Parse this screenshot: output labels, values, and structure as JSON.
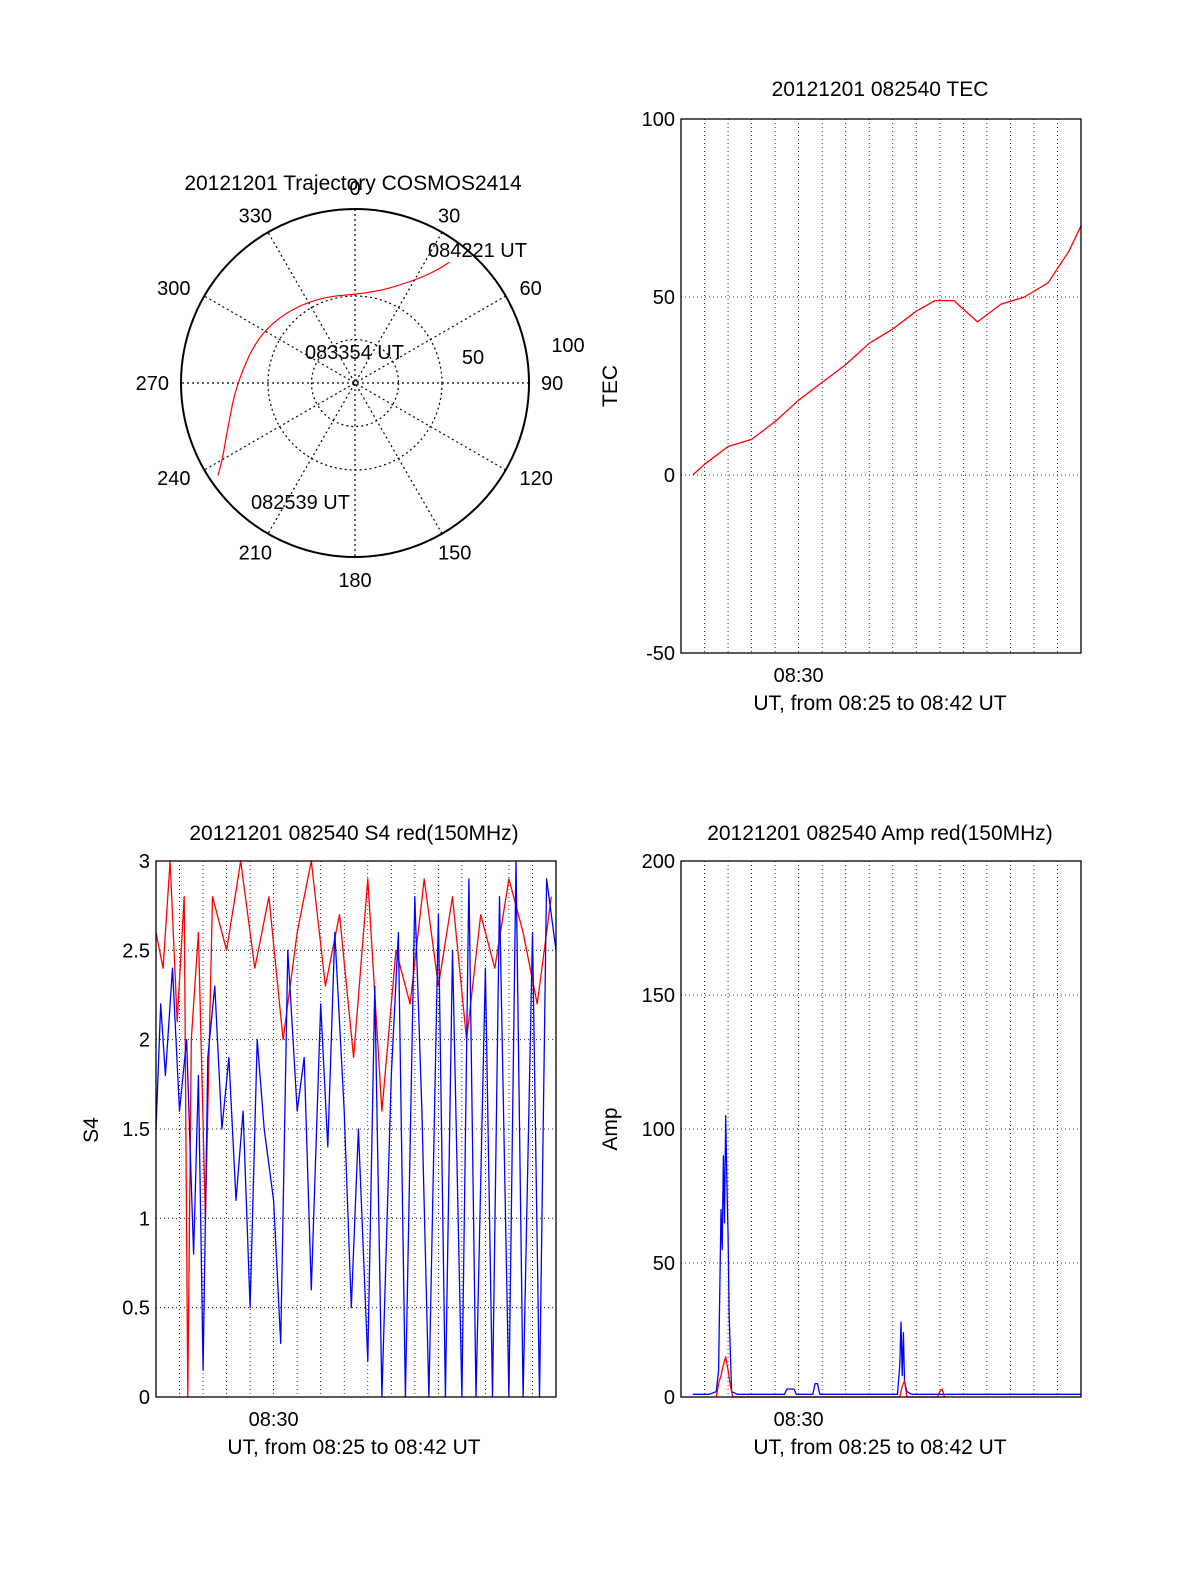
{
  "chart_data": [
    {
      "type": "polar",
      "title": "20121201 Trajectory COSMOS2414",
      "azimuth_labels": [
        "0",
        "30",
        "60",
        "90",
        "120",
        "150",
        "180",
        "210",
        "240",
        "270",
        "300",
        "330"
      ],
      "radial_labels": [
        "50",
        "100"
      ],
      "trajectory": [
        {
          "azimuth": 38,
          "radius": 88
        },
        {
          "azimuth": 36,
          "radius": 80
        },
        {
          "azimuth": 30,
          "radius": 68
        },
        {
          "azimuth": 12,
          "radius": 53
        },
        {
          "azimuth": 333,
          "radius": 55
        },
        {
          "azimuth": 300,
          "radius": 62
        },
        {
          "azimuth": 270,
          "radius": 68
        },
        {
          "azimuth": 250,
          "radius": 78
        },
        {
          "azimuth": 240,
          "radius": 88
        },
        {
          "azimuth": 236,
          "radius": 95
        }
      ],
      "annotations": [
        {
          "text": "084221 UT",
          "azimuth": 38,
          "radius": 88
        },
        {
          "text": "083354 UT",
          "azimuth": 360,
          "radius": 0
        },
        {
          "text": "082539 UT",
          "azimuth": 236,
          "radius": 95
        }
      ],
      "color": "#ff0000"
    },
    {
      "type": "line",
      "title": "20121201 082540 TEC",
      "ylabel": "TEC",
      "xlabel": "UT, from 08:25 to 08:42 UT",
      "xtick_labels": [
        "08:30"
      ],
      "ytick_labels": [
        "-50",
        "0",
        "50",
        "100"
      ],
      "xlim": [
        0,
        17
      ],
      "ylim": [
        -50,
        100
      ],
      "grid": true,
      "series": [
        {
          "color": "#ff0000",
          "x": [
            0.5,
            1.0,
            2.0,
            3.0,
            4.0,
            5.0,
            6.0,
            7.0,
            8.0,
            9.0,
            10.0,
            10.8,
            11.6,
            12.6,
            13.6,
            14.6,
            15.6,
            16.5,
            17.0
          ],
          "y": [
            0,
            3,
            8,
            10,
            15,
            21,
            26,
            31,
            37,
            41,
            46,
            49,
            49,
            43,
            48,
            50,
            54,
            63,
            70
          ]
        }
      ]
    },
    {
      "type": "line",
      "title": "20121201 082540 S4 red(150MHz)",
      "ylabel": "S4",
      "xlabel": "UT, from 08:25 to 08:42 UT",
      "xtick_labels": [
        "08:30"
      ],
      "ytick_labels": [
        "0",
        "0.5",
        "1",
        "1.5",
        "2",
        "2.5",
        "3"
      ],
      "xlim": [
        0,
        17
      ],
      "ylim": [
        0,
        3
      ],
      "grid": true,
      "series": [
        {
          "color": "#ff0000",
          "x": [
            0.0,
            0.3,
            0.6,
            0.9,
            1.2,
            1.35,
            1.5,
            1.8,
            2.1,
            2.4,
            3.0,
            3.6,
            4.2,
            4.8,
            5.4,
            6.0,
            6.6,
            7.2,
            7.8,
            8.4,
            9.0,
            9.6,
            10.2,
            10.8,
            11.4,
            12.0,
            12.6,
            13.2,
            13.8,
            14.4,
            15.0,
            15.6,
            16.2,
            16.8
          ],
          "y": [
            2.6,
            2.4,
            3.0,
            2.1,
            2.8,
            0.0,
            2.0,
            2.6,
            1.0,
            2.8,
            2.5,
            3.0,
            2.4,
            2.8,
            2.0,
            2.6,
            3.0,
            2.3,
            2.7,
            1.9,
            2.9,
            1.6,
            2.5,
            2.2,
            2.9,
            2.3,
            2.8,
            2.0,
            2.7,
            2.4,
            2.9,
            2.6,
            2.2,
            2.8
          ]
        },
        {
          "color": "#0000ff",
          "x": [
            0.0,
            0.2,
            0.4,
            0.7,
            1.0,
            1.3,
            1.6,
            1.8,
            2.0,
            2.2,
            2.5,
            2.8,
            3.1,
            3.4,
            3.7,
            4.0,
            4.3,
            4.6,
            5.0,
            5.3,
            5.6,
            6.0,
            6.3,
            6.6,
            7.0,
            7.3,
            7.6,
            8.0,
            8.3,
            8.6,
            9.0,
            9.3,
            9.6,
            10.0,
            10.3,
            10.6,
            11.0,
            11.3,
            11.6,
            12.0,
            12.3,
            12.6,
            13.0,
            13.3,
            13.6,
            14.0,
            14.3,
            14.6,
            15.0,
            15.3,
            15.6,
            16.0,
            16.3,
            16.6,
            17.0
          ],
          "y": [
            1.5,
            2.2,
            1.8,
            2.4,
            1.6,
            2.0,
            0.8,
            1.8,
            0.15,
            1.9,
            2.3,
            1.5,
            1.9,
            1.1,
            1.6,
            0.5,
            2.0,
            1.5,
            1.1,
            0.3,
            2.5,
            1.6,
            1.9,
            0.6,
            2.2,
            1.4,
            2.6,
            1.6,
            0.5,
            1.5,
            0.2,
            2.3,
            0.0,
            1.8,
            2.6,
            0.0,
            2.8,
            1.6,
            0.0,
            2.7,
            0.0,
            2.5,
            0.0,
            2.9,
            0.0,
            2.4,
            0.0,
            2.8,
            0.0,
            3.0,
            0.0,
            2.6,
            0.0,
            2.9,
            2.5
          ]
        }
      ]
    },
    {
      "type": "line",
      "title": "20121201 082540 Amp red(150MHz)",
      "ylabel": "Amp",
      "xlabel": "UT, from 08:25 to 08:42 UT",
      "xtick_labels": [
        "08:30"
      ],
      "ytick_labels": [
        "0",
        "50",
        "100",
        "150",
        "200"
      ],
      "xlim": [
        0,
        17
      ],
      "ylim": [
        0,
        200
      ],
      "grid": true,
      "series": [
        {
          "color": "#0000ff",
          "x": [
            0.5,
            1.2,
            1.5,
            1.6,
            1.65,
            1.7,
            1.75,
            1.8,
            1.85,
            1.9,
            1.95,
            2.0,
            2.05,
            2.15,
            2.4,
            3.0,
            4.4,
            4.5,
            4.8,
            4.9,
            5.6,
            5.7,
            5.8,
            5.9,
            6.2,
            8.0,
            9.2,
            9.3,
            9.35,
            9.4,
            9.45,
            9.5,
            9.6,
            9.8,
            11.0,
            12.0,
            14.0,
            16.0,
            17.0
          ],
          "y": [
            1,
            1,
            2,
            10,
            40,
            70,
            55,
            90,
            65,
            105,
            80,
            60,
            30,
            2,
            1,
            1,
            1,
            3,
            3,
            1,
            1,
            5,
            5,
            1,
            1,
            1,
            1,
            12,
            28,
            8,
            24,
            6,
            2,
            1,
            1,
            1,
            1,
            1,
            1
          ]
        },
        {
          "color": "#ff0000",
          "x": [
            1.5,
            1.6,
            1.7,
            1.8,
            1.9,
            2.0,
            2.1,
            2.2,
            9.3,
            9.4,
            9.5,
            9.6,
            10.9,
            11.0,
            11.1,
            11.2
          ],
          "y": [
            0,
            5,
            8,
            12,
            15,
            10,
            4,
            0,
            0,
            4,
            6,
            0,
            0,
            2,
            3,
            0
          ]
        }
      ]
    }
  ]
}
